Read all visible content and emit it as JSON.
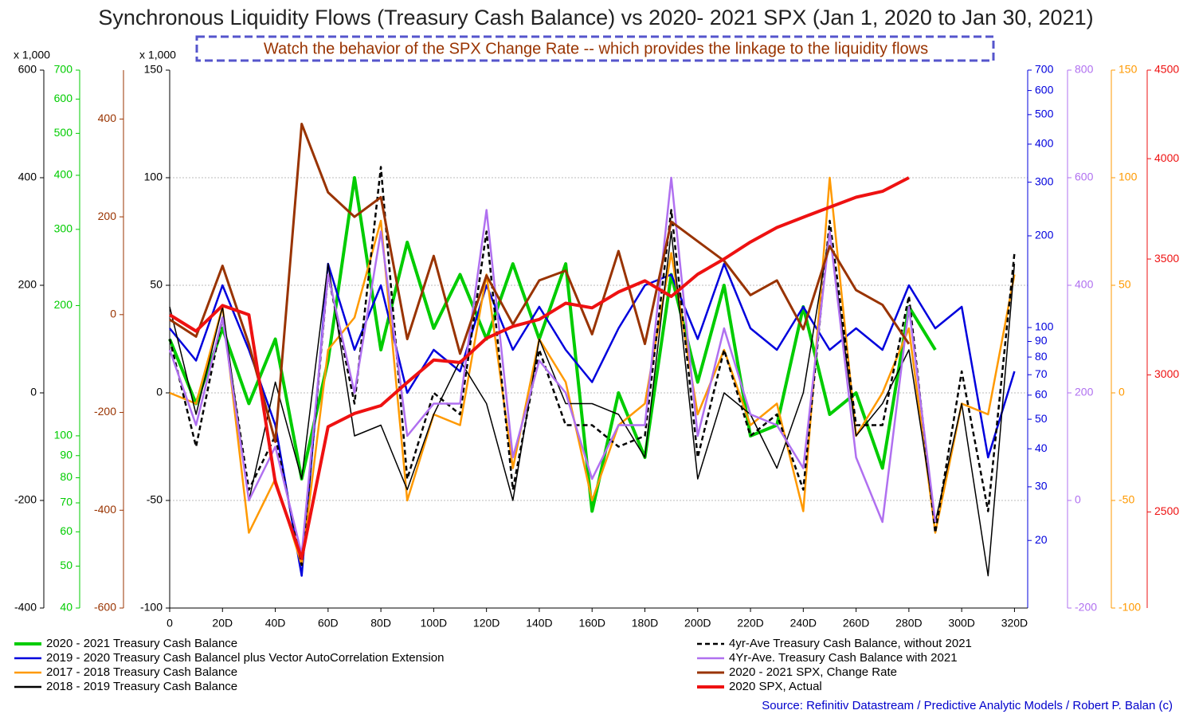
{
  "chart_data": {
    "type": "line",
    "title": "Synchronous Liquidity Flows (Treasury Cash Balance) vs 2020- 2021 SPX (Jan 1, 2020 to Jan 30, 2021)",
    "subtitle": "Watch the behavior of the SPX Change Rate -- which provides the linkage to the liquidity flows",
    "source": "Source: Refinitiv Datastream / Predictive Analytic Models / Robert P. Balan (c)",
    "grid": true,
    "xlim": [
      0,
      325
    ],
    "xticks": [
      0,
      {
        "value": 20,
        "label": "20D"
      },
      {
        "value": 40,
        "label": "40D"
      },
      {
        "value": 60,
        "label": "60D"
      },
      {
        "value": 80,
        "label": "80D"
      },
      {
        "value": 100,
        "label": "100D"
      },
      {
        "value": 120,
        "label": "120D"
      },
      {
        "value": 140,
        "label": "140D"
      },
      {
        "value": 160,
        "label": "160D"
      },
      {
        "value": 180,
        "label": "180D"
      },
      {
        "value": 200,
        "label": "200D"
      },
      {
        "value": 220,
        "label": "220D"
      },
      {
        "value": 240,
        "label": "240D"
      },
      {
        "value": 260,
        "label": "260D"
      },
      {
        "value": 280,
        "label": "280D"
      },
      {
        "value": 300,
        "label": "300D"
      },
      {
        "value": 320,
        "label": "320D"
      }
    ],
    "x": [
      0,
      10,
      20,
      30,
      40,
      50,
      60,
      70,
      80,
      90,
      100,
      110,
      120,
      130,
      140,
      150,
      160,
      170,
      180,
      190,
      200,
      210,
      220,
      230,
      240,
      250,
      260,
      270,
      280,
      290,
      300,
      310,
      320
    ],
    "axes": [
      {
        "lim": [
          -400,
          600
        ],
        "ticks": [
          -400,
          -200,
          0,
          200,
          400,
          600
        ],
        "color": "#000000",
        "unit": "x 1,000"
      },
      {
        "lim": [
          40,
          700
        ],
        "log": true,
        "ticks": [
          40,
          50,
          60,
          70,
          80,
          90,
          100,
          200,
          300,
          400,
          500,
          600,
          700
        ],
        "color": "#00cc00"
      },
      {
        "lim": [
          -600,
          500
        ],
        "ticks": [
          -600,
          -400,
          -200,
          0,
          200,
          400
        ],
        "color": "#993300"
      },
      {
        "lim": [
          -100,
          150
        ],
        "ticks": [
          -100,
          -50,
          0,
          50,
          100,
          150
        ],
        "color": "#000000",
        "unit": "x 1,000"
      },
      {
        "lim": [
          12,
          700
        ],
        "log": true,
        "ticks": [
          20,
          30,
          40,
          50,
          60,
          70,
          80,
          90,
          100,
          200,
          300,
          400,
          500,
          600,
          700
        ],
        "color": "#0000dd"
      },
      {
        "lim": [
          -200,
          800
        ],
        "ticks": [
          -200,
          0,
          200,
          400,
          600,
          800
        ],
        "color": "#b070f0"
      },
      {
        "lim": [
          -100,
          150
        ],
        "ticks": [
          -100,
          -50,
          0,
          50,
          100,
          150
        ],
        "color": "#ff9900"
      },
      {
        "lim": [
          2200,
          4500
        ],
        "log": true,
        "ticks": [
          2500,
          3000,
          3500,
          4000,
          4500
        ],
        "color": "#ee1111"
      }
    ],
    "series": [
      {
        "name": "2020 - 2021 Treasury Cash Balance",
        "color": "#00cc00",
        "axis": 3,
        "width": 4,
        "values": [
          25,
          -5,
          30,
          -5,
          25,
          -40,
          15,
          100,
          20,
          70,
          30,
          55,
          25,
          60,
          25,
          60,
          -55,
          0,
          -30,
          55,
          5,
          50,
          -20,
          -15,
          40,
          -10,
          0,
          -35,
          40,
          20,
          null,
          null,
          null
        ]
      },
      {
        "name": "2019 - 2020 Treasury Cash Balancel plus Vector AutoCorrelation Extension",
        "color": "#0000dd",
        "axis": 3,
        "width": 2.5,
        "values": [
          30,
          15,
          50,
          20,
          -15,
          -85,
          60,
          20,
          50,
          0,
          20,
          10,
          50,
          20,
          40,
          20,
          5,
          30,
          50,
          55,
          25,
          60,
          30,
          20,
          40,
          20,
          30,
          20,
          50,
          30,
          40,
          -30,
          10
        ]
      },
      {
        "name": "2017 - 2018 Treasury Cash Balance",
        "color": "#ff9900",
        "axis": 3,
        "width": 2.5,
        "values": [
          0,
          -5,
          40,
          -65,
          -40,
          -80,
          20,
          35,
          80,
          -50,
          -10,
          -15,
          55,
          -35,
          25,
          5,
          -50,
          -15,
          -5,
          65,
          -10,
          20,
          -15,
          -5,
          -55,
          100,
          -20,
          0,
          30,
          -65,
          -5,
          -10,
          55
        ]
      },
      {
        "name": "2018 - 2019 Treasury Cash Balance",
        "color": "#000000",
        "axis": 3,
        "width": 1.5,
        "values": [
          40,
          -10,
          40,
          -50,
          5,
          -40,
          60,
          -20,
          -15,
          -45,
          -10,
          15,
          -5,
          -50,
          25,
          -5,
          -5,
          -10,
          -30,
          75,
          -40,
          0,
          -10,
          -35,
          0,
          75,
          -20,
          -5,
          20,
          -60,
          -5,
          -85,
          60
        ]
      },
      {
        "name": "4yr-Ave Treasury Cash Balance, without 2021",
        "color": "#000000",
        "axis": 3,
        "width": 2.5,
        "style": "dashed",
        "values": [
          25,
          -25,
          35,
          -45,
          -20,
          -80,
          55,
          -5,
          105,
          -40,
          0,
          -10,
          75,
          -45,
          20,
          -15,
          -15,
          -25,
          -20,
          85,
          -30,
          20,
          -20,
          -10,
          -45,
          80,
          -15,
          -15,
          45,
          -65,
          10,
          -55,
          65
        ]
      },
      {
        "name": "4Yr-Ave. Treasury Cash Balance with 2021",
        "color": "#b070f0",
        "axis": 3,
        "width": 2.5,
        "values": [
          20,
          -15,
          35,
          -50,
          -25,
          -75,
          55,
          0,
          75,
          -20,
          -5,
          -5,
          85,
          -30,
          15,
          0,
          -40,
          -15,
          -15,
          100,
          -20,
          30,
          -10,
          -15,
          -35,
          75,
          -30,
          -60,
          40,
          -60,
          null,
          null,
          null
        ]
      },
      {
        "name": "2020 - 2021 SPX, Change Rate",
        "color": "#993300",
        "axis": 2,
        "width": 3,
        "values": [
          -10,
          -45,
          100,
          -60,
          -260,
          390,
          250,
          200,
          240,
          -50,
          120,
          -80,
          80,
          -20,
          70,
          90,
          -40,
          130,
          -60,
          190,
          150,
          110,
          40,
          70,
          -30,
          140,
          50,
          20,
          -60,
          null,
          null,
          null,
          null
        ]
      },
      {
        "name": "2020 SPX, Actual",
        "color": "#ee1111",
        "axis": 7,
        "width": 4,
        "values": [
          3250,
          3180,
          3290,
          3250,
          2600,
          2350,
          2800,
          2850,
          2880,
          2970,
          3060,
          3050,
          3150,
          3200,
          3230,
          3300,
          3280,
          3350,
          3400,
          3330,
          3430,
          3500,
          3580,
          3650,
          3700,
          3750,
          3800,
          3830,
          3900,
          null,
          null,
          null,
          null
        ]
      }
    ]
  }
}
